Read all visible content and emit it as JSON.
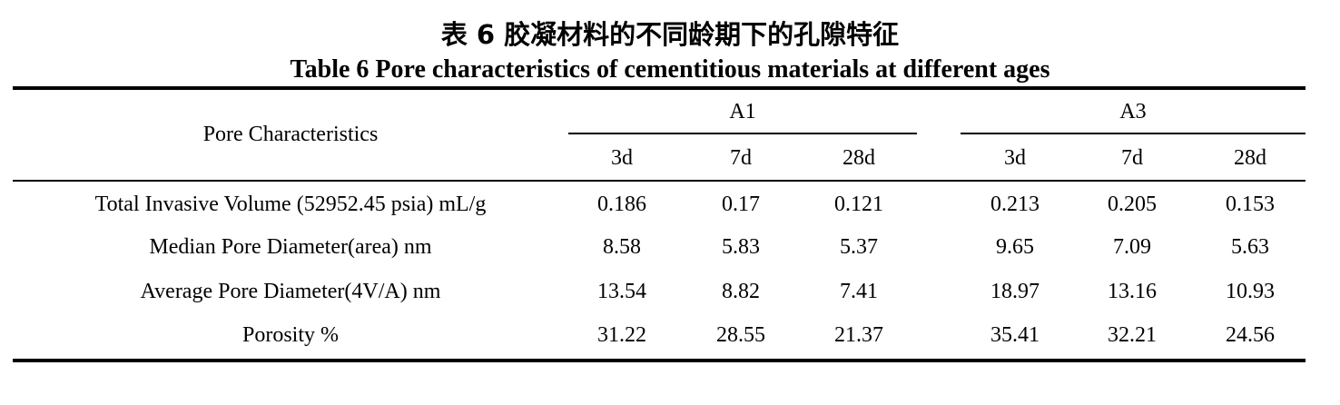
{
  "caption": {
    "cn": "表 6  胶凝材料的不同龄期下的孔隙特征",
    "en": "Table 6    Pore characteristics of cementitious materials at different ages"
  },
  "table": {
    "row_header_label": "Pore Characteristics",
    "groups": [
      {
        "label": "A1",
        "subcolumns": [
          "3d",
          "7d",
          "28d"
        ]
      },
      {
        "label": "A3",
        "subcolumns": [
          "3d",
          "7d",
          "28d"
        ]
      }
    ],
    "rows": [
      {
        "label": "Total Invasive Volume (52952.45 psia) mL/g",
        "values": [
          "0.186",
          "0.17",
          "0.121",
          "0.213",
          "0.205",
          "0.153"
        ]
      },
      {
        "label": "Median Pore Diameter(area) nm",
        "values": [
          "8.58",
          "5.83",
          "5.37",
          "9.65",
          "7.09",
          "5.63"
        ]
      },
      {
        "label": "Average Pore Diameter(4V/A) nm",
        "values": [
          "13.54",
          "8.82",
          "7.41",
          "18.97",
          "13.16",
          "10.93"
        ]
      },
      {
        "label": "Porosity %",
        "values": [
          "31.22",
          "28.55",
          "21.37",
          "35.41",
          "32.21",
          "24.56"
        ]
      }
    ]
  }
}
